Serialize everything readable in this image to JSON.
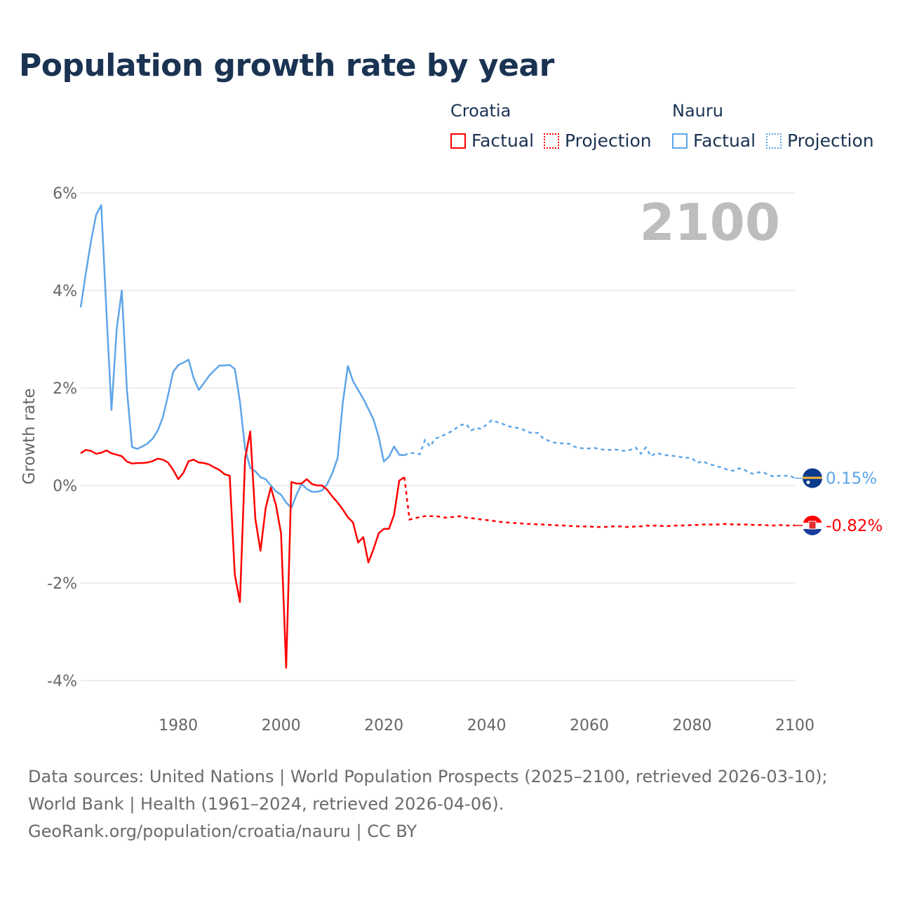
{
  "title": "Population growth rate by year",
  "legend": {
    "groups": [
      {
        "name": "Croatia",
        "factual": "Factual",
        "projection": "Projection",
        "color": "#ff0000"
      },
      {
        "name": "Nauru",
        "factual": "Factual",
        "projection": "Projection",
        "color": "#5ea5e8"
      }
    ]
  },
  "year_label": "2100",
  "end_labels": {
    "nauru": "0.15%",
    "croatia": "-0.82%"
  },
  "source": {
    "line1": "Data sources: United Nations | World Population Prospects (2025–2100, retrieved 2026-03-10); World Bank | Health (1961–2024, retrieved 2026-04-06).",
    "line2": "GeoRank.org/population/croatia/nauru | CC BY"
  },
  "chart_data": {
    "type": "line",
    "title": "Population growth rate by year",
    "xlabel": "",
    "ylabel": "Growth rate",
    "xlim": [
      1961,
      2100
    ],
    "ylim": [
      -4.5,
      6
    ],
    "yticks": [
      6,
      4,
      2,
      0,
      -2,
      -4
    ],
    "ytick_labels": [
      "6%",
      "4%",
      "2%",
      "0%",
      "-2%",
      "-4%"
    ],
    "xticks": [
      1980,
      2000,
      2020,
      2040,
      2060,
      2080,
      2100
    ],
    "xtick_labels": [
      "1980",
      "2000",
      "2020",
      "2040",
      "2060",
      "2080",
      "2100"
    ],
    "grid": true,
    "legend_position": "top-right",
    "series": [
      {
        "name": "Nauru",
        "color": "#5ea5e8",
        "factual_start": 1961,
        "factual": [
          3.65,
          4.35,
          5.0,
          5.55,
          5.75,
          3.6,
          1.55,
          3.2,
          4.0,
          1.97,
          0.79,
          0.75,
          0.8,
          0.86,
          0.96,
          1.13,
          1.4,
          1.85,
          2.33,
          2.47,
          2.52,
          2.58,
          2.2,
          1.96,
          2.1,
          2.25,
          2.36,
          2.46,
          2.46,
          2.47,
          2.39,
          1.72,
          0.75,
          0.36,
          0.29,
          0.17,
          0.13,
          0.0,
          -0.12,
          -0.19,
          -0.35,
          -0.46,
          -0.19,
          0.03,
          -0.07,
          -0.13,
          -0.13,
          -0.1,
          0.03,
          0.26,
          0.56,
          1.68,
          2.45,
          2.14,
          1.96,
          1.78,
          1.57,
          1.35,
          1.0,
          0.49,
          0.59,
          0.8,
          0.63,
          0.62
        ],
        "projection_start": 2024,
        "projection": [
          0.62,
          0.67,
          0.66,
          0.64,
          0.93,
          0.8,
          0.96,
          1.0,
          1.05,
          1.1,
          1.17,
          1.24,
          1.26,
          1.13,
          1.18,
          1.16,
          1.25,
          1.34,
          1.3,
          1.27,
          1.22,
          1.2,
          1.18,
          1.15,
          1.1,
          1.07,
          1.08,
          0.97,
          0.92,
          0.88,
          0.87,
          0.86,
          0.86,
          0.8,
          0.77,
          0.76,
          0.76,
          0.77,
          0.75,
          0.73,
          0.73,
          0.74,
          0.72,
          0.71,
          0.73,
          0.78,
          0.65,
          0.78,
          0.6,
          0.67,
          0.64,
          0.62,
          0.61,
          0.6,
          0.58,
          0.57,
          0.56,
          0.46,
          0.5,
          0.45,
          0.42,
          0.39,
          0.36,
          0.32,
          0.3,
          0.35,
          0.34,
          0.26,
          0.24,
          0.27,
          0.26,
          0.21,
          0.18,
          0.2,
          0.2,
          0.2,
          0.15
        ]
      },
      {
        "name": "Croatia",
        "color": "#ff0000",
        "factual_start": 1961,
        "factual": [
          0.66,
          0.73,
          0.71,
          0.65,
          0.67,
          0.72,
          0.66,
          0.63,
          0.6,
          0.49,
          0.45,
          0.46,
          0.46,
          0.47,
          0.5,
          0.55,
          0.53,
          0.47,
          0.32,
          0.13,
          0.26,
          0.5,
          0.53,
          0.47,
          0.46,
          0.43,
          0.37,
          0.32,
          0.23,
          0.2,
          -1.83,
          -2.39,
          0.56,
          1.11,
          -0.69,
          -1.34,
          -0.46,
          -0.04,
          -0.4,
          -0.98,
          -3.74,
          0.07,
          0.04,
          0.04,
          0.13,
          0.03,
          0.0,
          0.0,
          -0.09,
          -0.23,
          -0.35,
          -0.49,
          -0.65,
          -0.76,
          -1.17,
          -1.06,
          -1.58,
          -1.3,
          -0.98,
          -0.89,
          -0.89,
          -0.6,
          0.1,
          0.17
        ],
        "projection_start": 2024,
        "projection": [
          0.17,
          -0.7,
          -0.67,
          -0.65,
          -0.63,
          -0.63,
          -0.63,
          -0.64,
          -0.66,
          -0.65,
          -0.64,
          -0.63,
          -0.66,
          -0.67,
          -0.68,
          -0.7,
          -0.71,
          -0.72,
          -0.74,
          -0.75,
          -0.76,
          -0.77,
          -0.77,
          -0.78,
          -0.79,
          -0.79,
          -0.8,
          -0.8,
          -0.81,
          -0.81,
          -0.82,
          -0.82,
          -0.83,
          -0.83,
          -0.84,
          -0.84,
          -0.84,
          -0.85,
          -0.85,
          -0.85,
          -0.84,
          -0.84,
          -0.84,
          -0.85,
          -0.85,
          -0.84,
          -0.84,
          -0.82,
          -0.83,
          -0.82,
          -0.83,
          -0.83,
          -0.83,
          -0.82,
          -0.82,
          -0.82,
          -0.81,
          -0.81,
          -0.8,
          -0.8,
          -0.8,
          -0.8,
          -0.79,
          -0.79,
          -0.8,
          -0.8,
          -0.8,
          -0.8,
          -0.81,
          -0.81,
          -0.81,
          -0.82,
          -0.82,
          -0.81,
          -0.82,
          -0.82,
          -0.82
        ]
      }
    ]
  }
}
